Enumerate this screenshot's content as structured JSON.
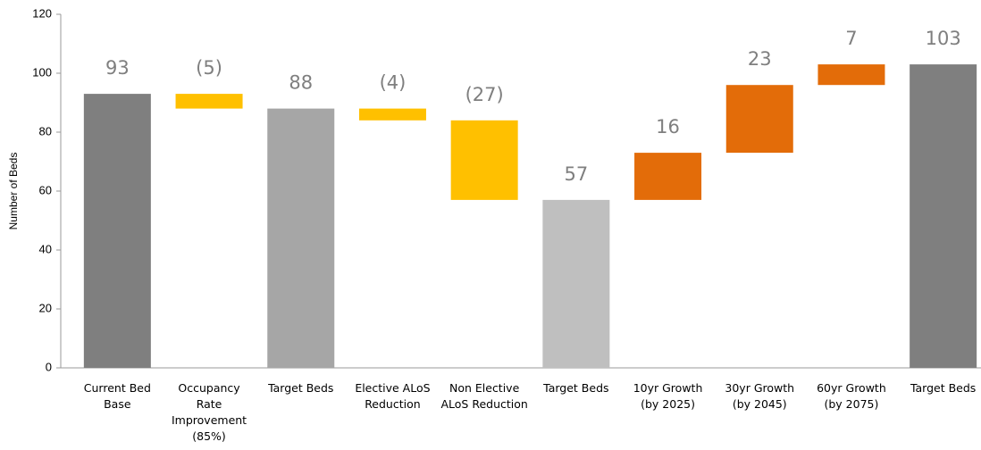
{
  "chart_data": {
    "type": "waterfall",
    "y_axis_label": "Number of Beds",
    "categories": [
      "Current Bed Base",
      "Occupancy Rate Improvement (85%)",
      "Target Beds",
      "Elective ALoS Reduction",
      "Non Elective ALoS Reduction",
      "Target Beds",
      "10yr Growth (by 2025)",
      "30yr Growth (by 2045)",
      "60yr Growth (by 2075)",
      "Target Beds"
    ],
    "measure": [
      "total",
      "relative",
      "total",
      "relative",
      "relative",
      "total",
      "relative",
      "relative",
      "relative",
      "total"
    ],
    "values": [
      93,
      -5,
      88,
      -4,
      -27,
      57,
      16,
      23,
      7,
      103
    ],
    "value_labels": [
      "93",
      "(5)",
      "88",
      "(4)",
      "(27)",
      "57",
      "16",
      "23",
      "7",
      "103"
    ],
    "colors": [
      "#7f7f7f",
      "#ffc000",
      "#a6a6a6",
      "#ffc000",
      "#ffc000",
      "#bfbfbf",
      "#e36c09",
      "#e36c09",
      "#e36c09",
      "#7f7f7f"
    ],
    "ylim": [
      0,
      120
    ],
    "yticks": [
      0,
      20,
      40,
      60,
      80,
      100,
      120
    ],
    "grid": false
  }
}
